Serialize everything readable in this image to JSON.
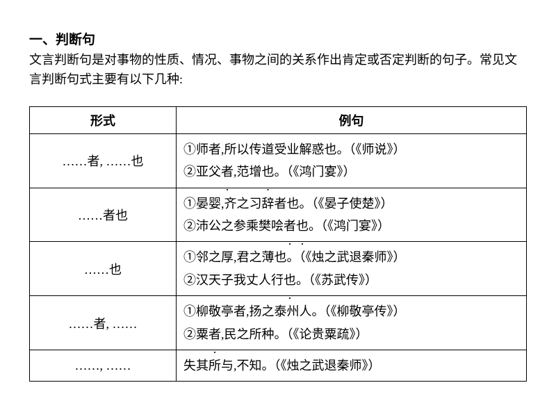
{
  "title": "一、判断句",
  "intro": "文言判断句是对事物的性质、情况、事物之间的关系作出肯定或否定判断的句子。常见文言判断句式主要有以下几种:",
  "table": {
    "header_form": "形式",
    "header_example": "例句",
    "rows": [
      {
        "form": "……者, ……也",
        "examples": [
          {
            "segments": [
              {
                "t": "①师"
              },
              {
                "t": "者",
                "d": true
              },
              {
                "t": ",所以传道受业解惑"
              },
              {
                "t": "也",
                "d": true
              },
              {
                "t": "。（《师说》）"
              }
            ]
          },
          {
            "segments": [
              {
                "t": "②亚父"
              },
              {
                "t": "者",
                "d": true
              },
              {
                "t": ",范增"
              },
              {
                "t": "也",
                "d": true
              },
              {
                "t": "。（《鸿门宴》）"
              }
            ]
          }
        ]
      },
      {
        "form": "……者也",
        "examples": [
          {
            "segments": [
              {
                "t": "①晏婴,齐之习辞"
              },
              {
                "t": "者",
                "d": true
              },
              {
                "t": "也",
                "d": true
              },
              {
                "t": "。（《晏子使楚》）"
              }
            ]
          },
          {
            "segments": [
              {
                "t": "②沛公之参乘樊哙"
              },
              {
                "t": "者",
                "d": true
              },
              {
                "t": "也",
                "d": true
              },
              {
                "t": "。（《鸿门宴》）"
              }
            ]
          }
        ]
      },
      {
        "form": "……也",
        "examples": [
          {
            "segments": [
              {
                "t": "①邻之厚,君之薄"
              },
              {
                "t": "也",
                "d": true
              },
              {
                "t": "。（《烛之武退秦师》）"
              }
            ]
          },
          {
            "segments": [
              {
                "t": "②汉天子我丈人行"
              },
              {
                "t": "也",
                "d": true
              },
              {
                "t": "。（《苏武传》）"
              }
            ]
          }
        ]
      },
      {
        "form": "……者, ……",
        "examples": [
          {
            "segments": [
              {
                "t": "①柳敬亭"
              },
              {
                "t": "者",
                "d": true
              },
              {
                "t": ",扬之泰州人。（《柳敬亭传》）"
              }
            ]
          },
          {
            "segments": [
              {
                "t": "②粟"
              },
              {
                "t": "者",
                "d": true
              },
              {
                "t": ",民之所种。（《论贵粟疏》）"
              }
            ]
          }
        ]
      },
      {
        "form": "……, ……",
        "examples": [
          {
            "segments": [
              {
                "t": "失其所与,不知。（《烛之武退秦师》）"
              }
            ]
          }
        ]
      }
    ]
  }
}
